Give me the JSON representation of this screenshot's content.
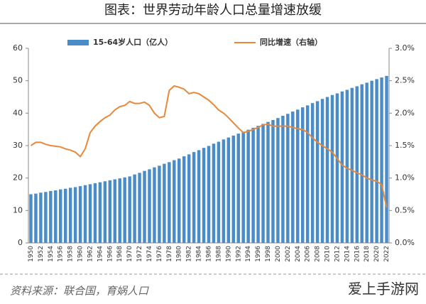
{
  "chart_data": {
    "type": "bar-line",
    "title": "图表：世界劳动年龄人口总量增速放缓",
    "source": "资料来源：联合国，育娲人口",
    "watermark": "爱上手游网",
    "categories": [
      "1950",
      null,
      "1952",
      null,
      "1954",
      null,
      "1956",
      null,
      "1958",
      null,
      "1960",
      null,
      "1962",
      null,
      "1964",
      null,
      "1966",
      null,
      "1968",
      null,
      "1970",
      null,
      "1972",
      null,
      "1974",
      null,
      "1976",
      null,
      "1978",
      null,
      "1980",
      null,
      "1982",
      null,
      "1984",
      null,
      "1986",
      null,
      "1988",
      null,
      "1990",
      null,
      "1992",
      null,
      "1994",
      null,
      "1996",
      null,
      "1998",
      null,
      "2000",
      null,
      "2002",
      null,
      "2004",
      null,
      "2006",
      null,
      "2008",
      null,
      "2010",
      null,
      "2012",
      null,
      "2014",
      null,
      "2016",
      null,
      "2018",
      null,
      "2020",
      null,
      "2022"
    ],
    "series": [
      {
        "name": "15-64岁人口（亿人）",
        "color": "#4a8cc8",
        "type": "bar",
        "values": [
          15.0,
          15.2,
          15.5,
          15.7,
          16.0,
          16.2,
          16.5,
          16.7,
          17.0,
          17.2,
          17.5,
          17.8,
          18.1,
          18.4,
          18.7,
          19.0,
          19.3,
          19.6,
          19.9,
          20.2,
          20.5,
          21.1,
          21.6,
          22.2,
          22.7,
          23.3,
          23.8,
          24.4,
          24.9,
          25.5,
          26.0,
          26.7,
          27.3,
          28.0,
          28.6,
          29.3,
          29.9,
          30.6,
          31.2,
          31.9,
          32.5,
          33.1,
          33.7,
          34.3,
          34.9,
          35.5,
          36.1,
          36.7,
          37.3,
          37.9,
          38.5,
          39.2,
          39.8,
          40.5,
          41.1,
          41.8,
          42.4,
          43.1,
          43.7,
          44.4,
          45.0,
          45.6,
          46.1,
          46.7,
          47.2,
          47.8,
          48.3,
          48.9,
          49.4,
          50.0,
          50.5,
          51.0,
          51.5
        ]
      },
      {
        "name": "同比增速（右轴）",
        "color": "#e8883a",
        "type": "line",
        "axis": "y2",
        "values": [
          1.5,
          1.55,
          1.55,
          1.52,
          1.5,
          1.49,
          1.48,
          1.45,
          1.43,
          1.4,
          1.33,
          1.45,
          1.7,
          1.8,
          1.87,
          1.93,
          1.97,
          2.05,
          2.1,
          2.12,
          2.18,
          2.15,
          2.15,
          2.17,
          2.12,
          2.0,
          1.93,
          1.95,
          2.35,
          2.42,
          2.4,
          2.37,
          2.3,
          2.32,
          2.3,
          2.25,
          2.2,
          2.13,
          2.05,
          2.0,
          1.93,
          1.85,
          1.77,
          1.7,
          1.72,
          1.75,
          1.78,
          1.82,
          1.83,
          1.8,
          1.8,
          1.8,
          1.8,
          1.78,
          1.76,
          1.75,
          1.7,
          1.62,
          1.55,
          1.5,
          1.45,
          1.4,
          1.3,
          1.2,
          1.15,
          1.12,
          1.08,
          1.05,
          1.0,
          0.97,
          0.95,
          0.9,
          0.55
        ]
      }
    ],
    "ylim": [
      0,
      60
    ],
    "yticks": [
      0,
      10,
      20,
      30,
      40,
      50,
      60
    ],
    "y2lim": [
      0,
      3
    ],
    "y2ticks": [
      {
        "value": 0,
        "label": "0.0%"
      },
      {
        "value": 0.5,
        "label": "0.5%"
      },
      {
        "value": 1,
        "label": "1.0%"
      },
      {
        "value": 1.5,
        "label": "1.5%"
      },
      {
        "value": 2,
        "label": "2.0%"
      },
      {
        "value": 2.5,
        "label": "2.5%"
      },
      {
        "value": 3,
        "label": "3.0%"
      }
    ]
  }
}
